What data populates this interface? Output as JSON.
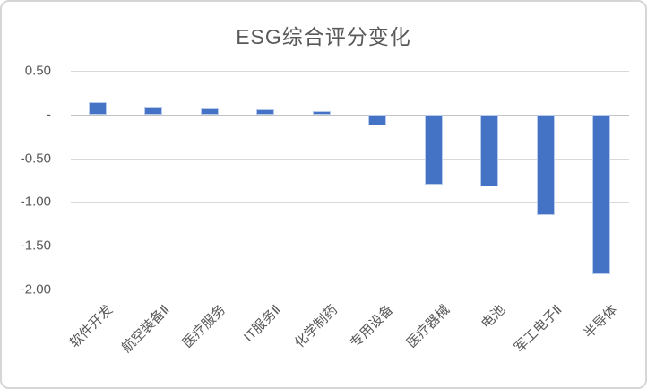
{
  "frame": {
    "background": "#ffffff",
    "border_color": "#d6d6d6"
  },
  "chart_data": {
    "type": "bar",
    "title": "ESG综合评分变化",
    "categories": [
      "软件开发",
      "航空装备Ⅱ",
      "医疗服务",
      "IT服务Ⅱ",
      "化学制药",
      "专用设备",
      "医疗器械",
      "电池",
      "军工电子Ⅱ",
      "半导体"
    ],
    "values": [
      0.14,
      0.09,
      0.07,
      0.06,
      0.04,
      -0.12,
      -0.8,
      -0.82,
      -1.15,
      -1.83
    ],
    "xlabel": "",
    "ylabel": "",
    "ylim": [
      -2.0,
      0.5
    ],
    "ytick_values": [
      0.5,
      0,
      -0.5,
      -1.0,
      -1.5,
      -2.0
    ],
    "ytick_labels": [
      "0.50",
      "-",
      "-0.50",
      "-1.00",
      "-1.50",
      "-2.00"
    ],
    "grid": true,
    "legend_position": "none",
    "bar_color": "#4472C4",
    "bar_border_color": "#b9cbec",
    "gridline_color": "#d9d9d9",
    "axis_text_color": "#595959",
    "title_color": "#595959"
  }
}
